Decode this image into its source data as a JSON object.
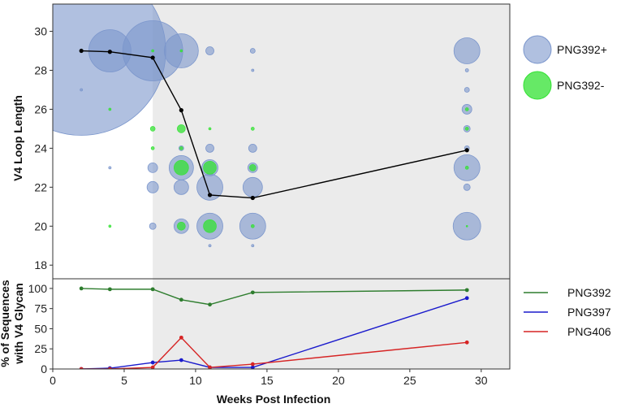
{
  "colors": {
    "plus": "#7b96cc",
    "minus": "#33e233",
    "shade": "#ebebeb",
    "avgline": "#000000",
    "png392": "#2e7d2e",
    "png397": "#1a1acc",
    "png406": "#d62424"
  },
  "chart_data": [
    {
      "type": "scatter",
      "title": "",
      "xlabel": "",
      "ylabel": "V4 Loop Length",
      "xlim": [
        0,
        32
      ],
      "ylim": [
        17.3,
        31.4
      ],
      "yticks": [
        "18",
        "20",
        "22",
        "24",
        "26",
        "28",
        "30"
      ],
      "shaded_from_week": 7,
      "legend": [
        {
          "name": "PNG392+",
          "color": "plus"
        },
        {
          "name": "PNG392-",
          "color": "minus"
        }
      ],
      "mean_line": {
        "x": [
          2,
          4,
          7,
          9,
          11,
          14,
          29
        ],
        "y": [
          29.0,
          28.95,
          28.65,
          25.95,
          21.6,
          21.45,
          23.9
        ]
      },
      "bubbles_plus": [
        {
          "x": 2,
          "y": 29,
          "r": 104
        },
        {
          "x": 2,
          "y": 27,
          "r": 1.5
        },
        {
          "x": 4,
          "y": 29,
          "r": 26
        },
        {
          "x": 4,
          "y": 23,
          "r": 1.5
        },
        {
          "x": 7,
          "y": 29,
          "r": 37
        },
        {
          "x": 7,
          "y": 23,
          "r": 6
        },
        {
          "x": 7,
          "y": 22,
          "r": 7
        },
        {
          "x": 7,
          "y": 20,
          "r": 4
        },
        {
          "x": 9,
          "y": 29,
          "r": 21
        },
        {
          "x": 9,
          "y": 24,
          "r": 3
        },
        {
          "x": 9,
          "y": 23,
          "r": 15
        },
        {
          "x": 9,
          "y": 22,
          "r": 9
        },
        {
          "x": 9,
          "y": 20,
          "r": 9
        },
        {
          "x": 11,
          "y": 29,
          "r": 5
        },
        {
          "x": 11,
          "y": 24,
          "r": 5
        },
        {
          "x": 11,
          "y": 23,
          "r": 10
        },
        {
          "x": 11,
          "y": 22,
          "r": 16
        },
        {
          "x": 11,
          "y": 20,
          "r": 16
        },
        {
          "x": 11,
          "y": 19,
          "r": 1.5
        },
        {
          "x": 14,
          "y": 29,
          "r": 3
        },
        {
          "x": 14,
          "y": 28,
          "r": 1.5
        },
        {
          "x": 14,
          "y": 24,
          "r": 5
        },
        {
          "x": 14,
          "y": 23,
          "r": 6
        },
        {
          "x": 14,
          "y": 22,
          "r": 12
        },
        {
          "x": 14,
          "y": 20,
          "r": 16
        },
        {
          "x": 14,
          "y": 19,
          "r": 1.5
        },
        {
          "x": 29,
          "y": 29,
          "r": 16
        },
        {
          "x": 29,
          "y": 28,
          "r": 2
        },
        {
          "x": 29,
          "y": 27,
          "r": 3
        },
        {
          "x": 29,
          "y": 26,
          "r": 6
        },
        {
          "x": 29,
          "y": 25,
          "r": 4
        },
        {
          "x": 29,
          "y": 24,
          "r": 3
        },
        {
          "x": 29,
          "y": 23,
          "r": 16
        },
        {
          "x": 29,
          "y": 22,
          "r": 4
        },
        {
          "x": 29,
          "y": 20,
          "r": 17
        }
      ],
      "bubbles_minus": [
        {
          "x": 4,
          "y": 26,
          "r": 1.5
        },
        {
          "x": 4,
          "y": 20,
          "r": 1.5
        },
        {
          "x": 7,
          "y": 29,
          "r": 1.5
        },
        {
          "x": 7,
          "y": 25,
          "r": 3
        },
        {
          "x": 7,
          "y": 24,
          "r": 2
        },
        {
          "x": 9,
          "y": 29,
          "r": 1.5
        },
        {
          "x": 9,
          "y": 25,
          "r": 5
        },
        {
          "x": 9,
          "y": 24,
          "r": 2
        },
        {
          "x": 9,
          "y": 23,
          "r": 9
        },
        {
          "x": 9,
          "y": 20,
          "r": 5
        },
        {
          "x": 11,
          "y": 25,
          "r": 1.5
        },
        {
          "x": 11,
          "y": 23,
          "r": 8
        },
        {
          "x": 11,
          "y": 20,
          "r": 8
        },
        {
          "x": 14,
          "y": 25,
          "r": 2
        },
        {
          "x": 14,
          "y": 23,
          "r": 4
        },
        {
          "x": 14,
          "y": 20,
          "r": 2
        },
        {
          "x": 29,
          "y": 26,
          "r": 2
        },
        {
          "x": 29,
          "y": 25,
          "r": 2
        },
        {
          "x": 29,
          "y": 23,
          "r": 2
        },
        {
          "x": 29,
          "y": 20,
          "r": 1
        }
      ]
    },
    {
      "type": "line",
      "title": "",
      "xlabel": "Weeks Post Infection",
      "ylabel_lines": [
        "% of Sequences",
        "with V4 Glycan"
      ],
      "xlim": [
        0,
        32
      ],
      "ylim": [
        0,
        112
      ],
      "xticks": [
        "0",
        "5",
        "10",
        "15",
        "20",
        "25",
        "30"
      ],
      "yticks": [
        "0",
        "25",
        "50",
        "75",
        "100"
      ],
      "shaded_from_week": 7,
      "series": [
        {
          "name": "PNG392",
          "color": "png392",
          "x": [
            2,
            4,
            7,
            9,
            11,
            14,
            29
          ],
          "values": [
            100,
            99,
            99,
            86,
            80,
            95,
            98
          ]
        },
        {
          "name": "PNG397",
          "color": "png397",
          "x": [
            2,
            4,
            7,
            9,
            11,
            14,
            29
          ],
          "values": [
            0,
            1,
            8,
            11,
            2,
            2,
            88
          ]
        },
        {
          "name": "PNG406",
          "color": "png406",
          "x": [
            2,
            4,
            7,
            9,
            11,
            14,
            29
          ],
          "values": [
            0,
            0,
            2,
            39,
            2,
            6,
            33
          ]
        }
      ]
    }
  ]
}
